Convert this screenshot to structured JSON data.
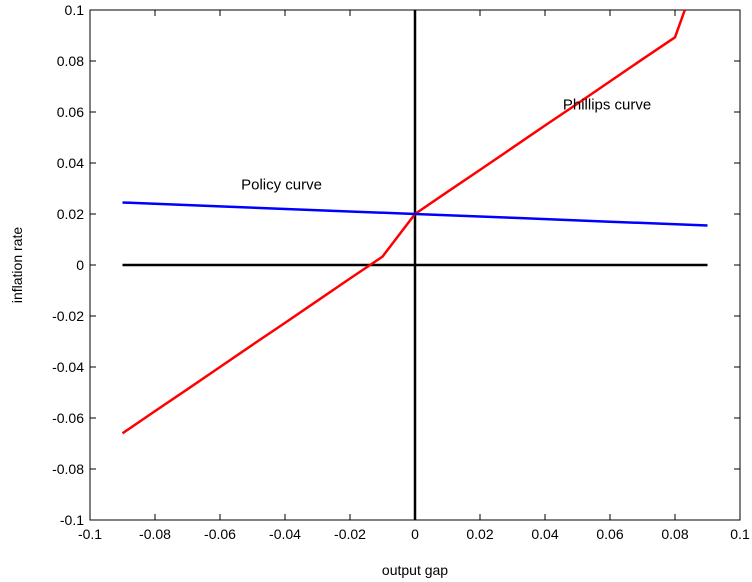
{
  "chart_data": {
    "type": "line",
    "title": "",
    "xlabel": "output gap",
    "ylabel": "inflation rate",
    "xlim": [
      -0.1,
      0.1
    ],
    "ylim": [
      -0.1,
      0.1
    ],
    "grid": false,
    "xticks": [
      -0.1,
      -0.08,
      -0.06,
      -0.04,
      -0.02,
      0,
      0.02,
      0.04,
      0.06,
      0.08,
      0.1
    ],
    "yticks": [
      -0.1,
      -0.08,
      -0.06,
      -0.04,
      -0.02,
      0,
      0.02,
      0.04,
      0.06,
      0.08,
      0.1
    ],
    "xtick_labels": [
      "-0.1",
      "-0.08",
      "-0.06",
      "-0.04",
      "-0.02",
      "0",
      "0.02",
      "0.04",
      "0.06",
      "0.08",
      "0.1"
    ],
    "ytick_labels": [
      "-0.1",
      "-0.08",
      "-0.06",
      "-0.04",
      "-0.02",
      "0",
      "0.02",
      "0.04",
      "0.06",
      "0.08",
      "0.1"
    ],
    "reference_lines": [
      {
        "orientation": "horizontal",
        "y": 0,
        "x_range": [
          -0.09,
          0.09
        ],
        "color": "#000000"
      },
      {
        "orientation": "vertical",
        "x": 0,
        "y_range": [
          -0.1,
          0.1
        ],
        "color": "#000000"
      }
    ],
    "series": [
      {
        "name": "Phillips curve",
        "color": "#ff0000",
        "x": [
          -0.09,
          -0.08,
          -0.07,
          -0.06,
          -0.05,
          -0.04,
          -0.03,
          -0.02,
          -0.01,
          0,
          0.01,
          0.02,
          0.03,
          0.04,
          0.05,
          0.06,
          0.07,
          0.08,
          0.083
        ],
        "y": [
          -0.066,
          -0.0573,
          -0.0487,
          -0.04,
          -0.0313,
          -0.0227,
          -0.014,
          -0.0053,
          0.0033,
          0.02,
          0.0287,
          0.0373,
          0.046,
          0.0547,
          0.0633,
          0.072,
          0.0807,
          0.0893,
          0.1
        ]
      },
      {
        "name": "Policy curve",
        "color": "#0000ff",
        "x": [
          -0.09,
          -0.06,
          -0.03,
          0,
          0.03,
          0.06,
          0.09
        ],
        "y": [
          0.0245,
          0.023,
          0.0215,
          0.02,
          0.0185,
          0.017,
          0.0155
        ]
      }
    ],
    "annotations": [
      {
        "text": "Phillips curve",
        "x": 0.0455,
        "y": 0.061
      },
      {
        "text": "Policy curve",
        "x": -0.0535,
        "y": 0.0297
      }
    ]
  }
}
